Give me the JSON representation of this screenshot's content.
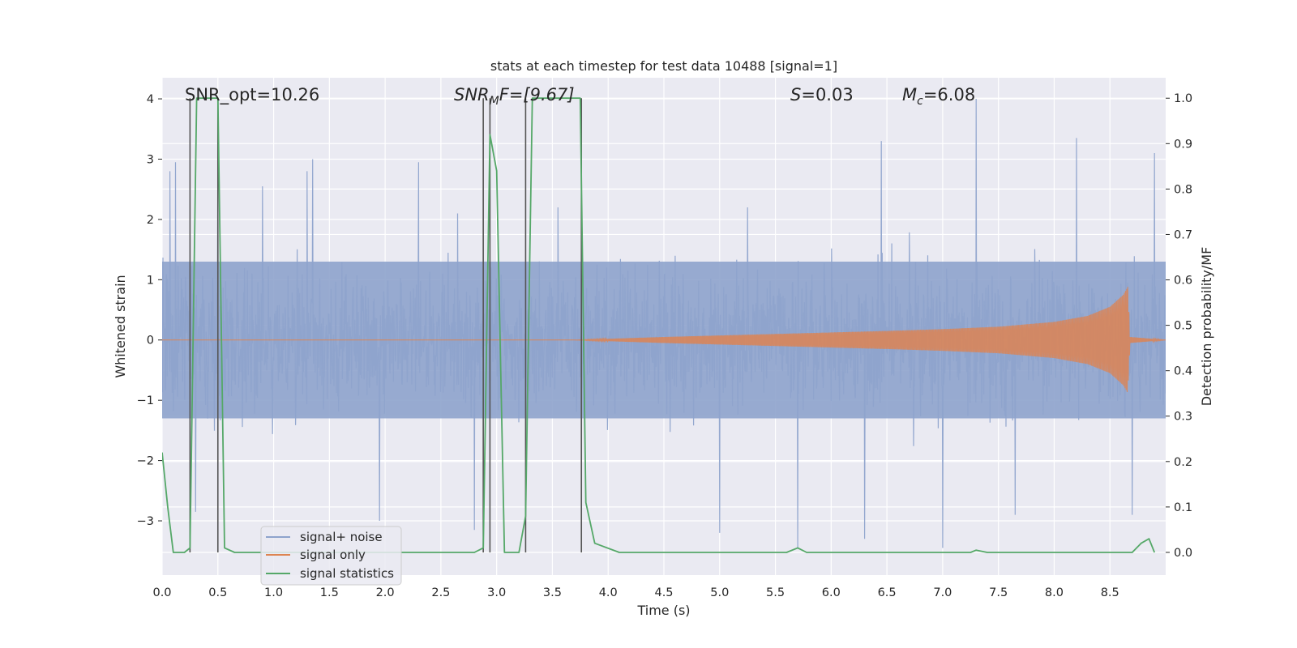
{
  "chart_data": {
    "type": "line",
    "title": "stats at each timestep for test data 10488 [signal=1]",
    "xlabel": "Time (s)",
    "ylabel_left": "Whitened strain",
    "ylabel_right": "Detection probability/MF",
    "xlim": [
      0.0,
      9.0
    ],
    "ylim_left": [
      -3.9,
      4.35
    ],
    "ylim_right": [
      -0.05,
      1.045
    ],
    "x_ticks": [
      0.0,
      0.5,
      1.0,
      1.5,
      2.0,
      2.5,
      3.0,
      3.5,
      4.0,
      4.5,
      5.0,
      5.5,
      6.0,
      6.5,
      7.0,
      7.5,
      8.0,
      8.5
    ],
    "x_tick_labels": [
      "0.0",
      "0.5",
      "1.0",
      "1.5",
      "2.0",
      "2.5",
      "3.0",
      "3.5",
      "4.0",
      "4.5",
      "5.0",
      "5.5",
      "6.0",
      "6.5",
      "7.0",
      "7.5",
      "8.0",
      "8.5"
    ],
    "y_left_ticks": [
      4,
      3,
      2,
      1,
      0,
      -1,
      -2,
      -3
    ],
    "y_left_tick_labels": [
      "4",
      "3",
      "2",
      "1",
      "0",
      "−1",
      "−2",
      "−3"
    ],
    "y_right_ticks": [
      1.0,
      0.9,
      0.8,
      0.7,
      0.6,
      0.5,
      0.4,
      0.3,
      0.2,
      0.1,
      0.0
    ],
    "y_right_tick_labels": [
      "1.0",
      "0.9",
      "0.8",
      "0.7",
      "0.6",
      "0.5",
      "0.4",
      "0.3",
      "0.2",
      "0.1",
      "0.0"
    ],
    "grid": true,
    "legend_position": "lower-left",
    "annotations": {
      "snr_opt": "SNR_opt=10.26",
      "snr_mf_sym": "SNR",
      "snr_mf_sub": "M",
      "snr_mf_rest": "F=[9.67]",
      "s_sym": "S",
      "s_rest": "=0.03",
      "mc_sym": "M",
      "mc_sub": "c",
      "mc_rest": "=6.08"
    },
    "colors": {
      "background": "#eaeaf2",
      "grid": "#ffffff",
      "noise": "#8ea3cc",
      "signal": "#dd8452",
      "stats": "#55a868",
      "marker": "#555555"
    },
    "series": [
      {
        "name": "signal+ noise",
        "axis": "left",
        "style": "dense noise, amplitude about ±1.3 with spikes to ±4",
        "spikes": [
          [
            0.07,
            2.8
          ],
          [
            0.12,
            2.95
          ],
          [
            0.5,
            3.25
          ],
          [
            0.9,
            2.55
          ],
          [
            1.3,
            2.8
          ],
          [
            1.35,
            3.0
          ],
          [
            2.3,
            2.95
          ],
          [
            2.65,
            2.1
          ],
          [
            3.55,
            2.2
          ],
          [
            5.25,
            2.2
          ],
          [
            6.45,
            3.3
          ],
          [
            7.3,
            4.0
          ],
          [
            8.2,
            3.35
          ],
          [
            8.9,
            3.1
          ],
          [
            0.3,
            -2.85
          ],
          [
            1.95,
            -3.0
          ],
          [
            2.8,
            -3.15
          ],
          [
            5.0,
            -3.2
          ],
          [
            5.7,
            -3.45
          ],
          [
            6.3,
            -3.3
          ],
          [
            7.0,
            -3.45
          ],
          [
            7.65,
            -2.9
          ],
          [
            8.7,
            -2.9
          ]
        ]
      },
      {
        "name": "signal only",
        "axis": "left",
        "style": "chirp envelope growing until merger",
        "envelope": [
          [
            0.0,
            0.0
          ],
          [
            3.7,
            0.0
          ],
          [
            4.5,
            0.05
          ],
          [
            5.5,
            0.1
          ],
          [
            6.5,
            0.15
          ],
          [
            7.0,
            0.18
          ],
          [
            7.5,
            0.22
          ],
          [
            8.0,
            0.3
          ],
          [
            8.3,
            0.4
          ],
          [
            8.5,
            0.55
          ],
          [
            8.62,
            0.75
          ],
          [
            8.66,
            0.88
          ],
          [
            8.68,
            0.05
          ],
          [
            9.0,
            0.0
          ]
        ]
      },
      {
        "name": "signal statistics",
        "axis": "right",
        "points": [
          [
            0.0,
            0.22
          ],
          [
            0.05,
            0.1
          ],
          [
            0.1,
            0.0
          ],
          [
            0.2,
            0.0
          ],
          [
            0.25,
            0.01
          ],
          [
            0.31,
            1.0
          ],
          [
            0.36,
            1.0
          ],
          [
            0.5,
            1.0
          ],
          [
            0.56,
            0.01
          ],
          [
            0.65,
            0.0
          ],
          [
            0.9,
            0.0
          ],
          [
            2.8,
            0.0
          ],
          [
            2.88,
            0.01
          ],
          [
            2.94,
            0.92
          ],
          [
            3.0,
            0.84
          ],
          [
            3.07,
            0.0
          ],
          [
            3.2,
            0.0
          ],
          [
            3.26,
            0.08
          ],
          [
            3.32,
            1.0
          ],
          [
            3.5,
            1.0
          ],
          [
            3.75,
            1.0
          ],
          [
            3.8,
            0.11
          ],
          [
            3.88,
            0.02
          ],
          [
            4.1,
            0.0
          ],
          [
            5.6,
            0.0
          ],
          [
            5.7,
            0.01
          ],
          [
            5.78,
            0.0
          ],
          [
            7.25,
            0.0
          ],
          [
            7.3,
            0.005
          ],
          [
            7.4,
            0.0
          ],
          [
            8.7,
            0.0
          ],
          [
            8.78,
            0.02
          ],
          [
            8.85,
            0.03
          ],
          [
            8.9,
            0.0
          ]
        ]
      }
    ],
    "detection_markers": [
      0.25,
      0.5,
      2.88,
      2.94,
      3.26,
      3.76
    ]
  },
  "legend": [
    {
      "label": "signal+ noise",
      "color": "#8ea3cc"
    },
    {
      "label": "signal only",
      "color": "#dd8452"
    },
    {
      "label": "signal statistics",
      "color": "#55a868"
    }
  ]
}
